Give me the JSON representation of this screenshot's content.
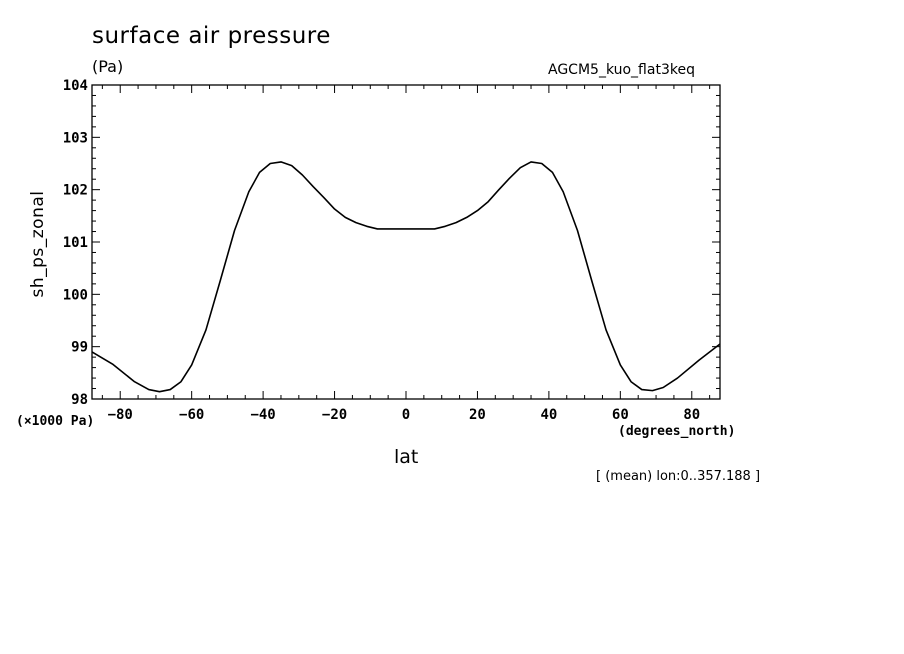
{
  "chart_data": {
    "type": "line",
    "title": "surface air pressure",
    "units": "(Pa)",
    "model_label": "AGCM5_kuo_flat3keq",
    "xlabel": "lat",
    "x_units": "(degrees_north)",
    "ylabel": "sh_ps_zonal",
    "y_scale_note": "(×1000 Pa)",
    "averaging_note": "[ (mean) lon:0..357.188 ]",
    "xlim": [
      -87.9,
      87.9
    ],
    "ylim": [
      98,
      104
    ],
    "x_ticks": [
      -80,
      -60,
      -40,
      -20,
      0,
      20,
      40,
      60,
      80
    ],
    "x_tick_labels": [
      "−80",
      "−60",
      "−40",
      "−20",
      "0",
      "20",
      "40",
      "60",
      "80"
    ],
    "y_ticks": [
      98,
      99,
      100,
      101,
      102,
      103,
      104
    ],
    "y_tick_labels": [
      "98",
      "99",
      "100",
      "101",
      "102",
      "103",
      "104"
    ],
    "grid": false,
    "series": [
      {
        "x": [
          -87.9,
          -82,
          -76,
          -72,
          -69,
          -66,
          -63,
          -60,
          -56,
          -52,
          -48,
          -44,
          -41,
          -38,
          -35,
          -32,
          -29,
          -26,
          -23,
          -20,
          -17,
          -14,
          -11,
          -8,
          -5,
          0,
          5,
          8,
          11,
          14,
          17,
          20,
          23,
          26,
          29,
          32,
          35,
          38,
          41,
          44,
          48,
          52,
          56,
          60,
          63,
          66,
          69,
          72,
          76,
          82,
          87.9
        ],
        "y": [
          98.9,
          98.66,
          98.33,
          98.18,
          98.14,
          98.18,
          98.33,
          98.65,
          99.32,
          100.26,
          101.22,
          101.96,
          102.33,
          102.5,
          102.53,
          102.46,
          102.28,
          102.06,
          101.85,
          101.63,
          101.47,
          101.37,
          101.3,
          101.25,
          101.25,
          101.25,
          101.25,
          101.25,
          101.3,
          101.37,
          101.47,
          101.6,
          101.77,
          102.0,
          102.22,
          102.42,
          102.53,
          102.5,
          102.33,
          101.96,
          101.22,
          100.26,
          99.32,
          98.65,
          98.33,
          98.18,
          98.16,
          98.22,
          98.4,
          98.74,
          99.05
        ]
      }
    ]
  }
}
